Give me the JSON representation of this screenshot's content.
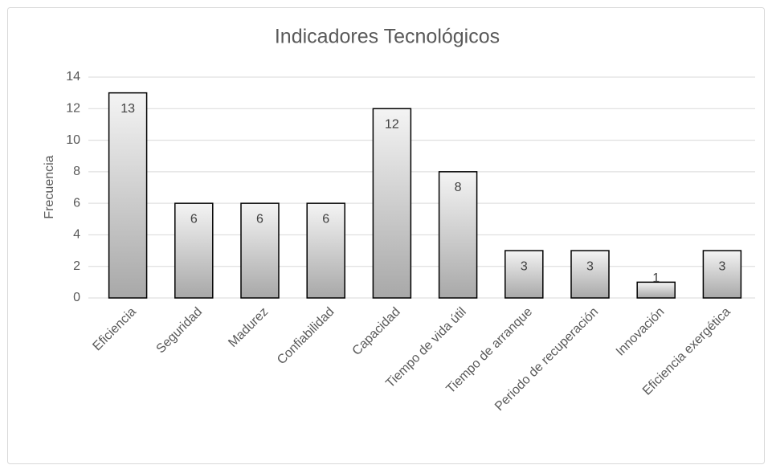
{
  "chart_data": {
    "type": "bar",
    "title": "Indicadores Tecnológicos",
    "y_label": "Frecuencia",
    "categories": [
      "Eficiencia",
      "Seguridad",
      "Madurez",
      "Confiabilidad",
      "Capacidad",
      "Tiempo de vida útil",
      "Tiempo de arranque",
      "Periodo de recuperación",
      "Innovación",
      "Eficiencia exergética"
    ],
    "values": [
      13,
      6,
      6,
      6,
      12,
      8,
      3,
      3,
      1,
      3
    ],
    "color": "#bfbfbf",
    "ylim": [
      0,
      14
    ],
    "yticks": [
      0,
      2,
      4,
      6,
      8,
      10,
      12,
      14
    ],
    "grid": true
  }
}
